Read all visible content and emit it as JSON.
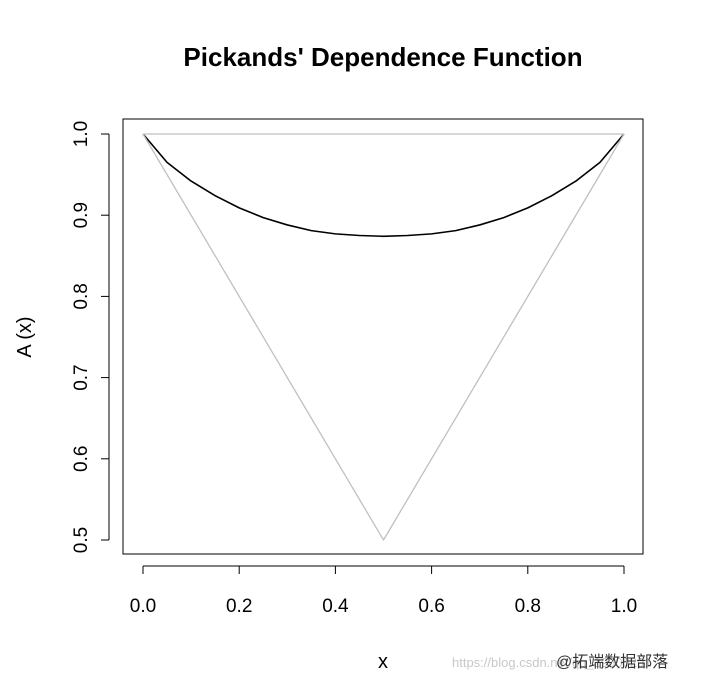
{
  "chart_data": {
    "type": "line",
    "title": "Pickands' Dependence Function",
    "xlabel": "x",
    "ylabel": "A (x)",
    "xlim": [
      0.0,
      1.0
    ],
    "ylim": [
      0.5,
      1.0
    ],
    "x_ticks": [
      "0.0",
      "0.2",
      "0.4",
      "0.6",
      "0.8",
      "1.0"
    ],
    "y_ticks": [
      "0.5",
      "0.6",
      "0.7",
      "0.8",
      "0.9",
      "1.0"
    ],
    "grid": false,
    "legend": "none",
    "series": [
      {
        "color": "#000000",
        "x": [
          0.0,
          0.05,
          0.1,
          0.15,
          0.2,
          0.25,
          0.3,
          0.35,
          0.4,
          0.45,
          0.5,
          0.55,
          0.6,
          0.65,
          0.7,
          0.75,
          0.8,
          0.85,
          0.9,
          0.95,
          1.0
        ],
        "y": [
          1.0,
          0.965,
          0.942,
          0.924,
          0.909,
          0.897,
          0.888,
          0.881,
          0.877,
          0.875,
          0.874,
          0.875,
          0.877,
          0.881,
          0.888,
          0.897,
          0.909,
          0.924,
          0.942,
          0.965,
          1.0
        ]
      },
      {
        "color": "#c0c0c0",
        "x": [
          0.0,
          1.0
        ],
        "y": [
          1.0,
          1.0
        ]
      },
      {
        "color": "#c0c0c0",
        "x": [
          0.0,
          0.5,
          1.0
        ],
        "y": [
          1.0,
          0.5,
          1.0
        ]
      }
    ]
  },
  "watermark": {
    "url": "https://blog.csdn.net/qq_19600291",
    "brand": "@拓端数据部落"
  }
}
